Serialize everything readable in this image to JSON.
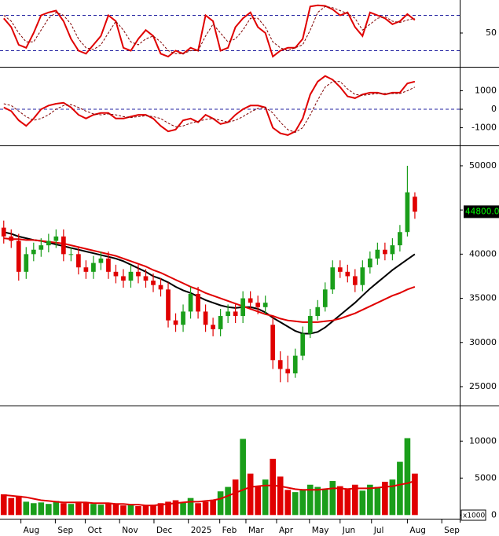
{
  "chart_data": [
    {
      "type": "line",
      "ylim": [
        -7.3,
        106
      ],
      "yticks": [
        50
      ],
      "levels": [
        20,
        80
      ],
      "level_color": "#2020a0",
      "series": [
        {
          "color": "#e00000",
          "line_style": "solid",
          "values": [
            75,
            60,
            30,
            25,
            50,
            80,
            85,
            88,
            70,
            40,
            20,
            15,
            30,
            45,
            80,
            70,
            25,
            20,
            40,
            55,
            45,
            15,
            10,
            20,
            15,
            25,
            20,
            80,
            70,
            20,
            25,
            60,
            75,
            85,
            60,
            50,
            10,
            20,
            25,
            25,
            40,
            95,
            97,
            96,
            90,
            80,
            85,
            60,
            45,
            85,
            80,
            75,
            65,
            70,
            82,
            72
          ]
        },
        {
          "color": "#800000",
          "line_style": "dashed",
          "values": [
            80,
            70,
            50,
            35,
            35,
            55,
            75,
            85,
            80,
            65,
            40,
            25,
            22,
            30,
            50,
            70,
            55,
            35,
            30,
            40,
            45,
            35,
            20,
            15,
            15,
            20,
            20,
            45,
            65,
            50,
            35,
            40,
            55,
            75,
            75,
            60,
            35,
            25,
            20,
            25,
            30,
            55,
            85,
            95,
            93,
            88,
            83,
            75,
            55,
            65,
            75,
            78,
            70,
            68,
            72,
            75
          ]
        }
      ]
    },
    {
      "type": "line",
      "ylim": [
        -1870,
        2170
      ],
      "yticks": [
        1000,
        0,
        -1000
      ],
      "levels": [
        0
      ],
      "level_color": "#2020a0",
      "series": [
        {
          "color": "#e00000",
          "line_style": "solid",
          "values": [
            100,
            -100,
            -600,
            -900,
            -500,
            0,
            200,
            300,
            350,
            100,
            -300,
            -500,
            -300,
            -200,
            -200,
            -500,
            -500,
            -400,
            -300,
            -300,
            -500,
            -900,
            -1200,
            -1100,
            -600,
            -500,
            -700,
            -300,
            -500,
            -800,
            -700,
            -300,
            0,
            200,
            200,
            100,
            -1000,
            -1300,
            -1400,
            -1200,
            -500,
            800,
            1500,
            1800,
            1600,
            1200,
            700,
            600,
            800,
            900,
            900,
            800,
            900,
            900,
            1400,
            1500
          ]
        },
        {
          "color": "#800000",
          "line_style": "dashed",
          "values": [
            300,
            200,
            -100,
            -400,
            -600,
            -500,
            -300,
            0,
            200,
            250,
            100,
            -100,
            -250,
            -300,
            -250,
            -300,
            -400,
            -450,
            -400,
            -350,
            -400,
            -500,
            -750,
            -950,
            -900,
            -750,
            -650,
            -550,
            -500,
            -600,
            -700,
            -600,
            -400,
            -150,
            50,
            100,
            -200,
            -700,
            -1100,
            -1250,
            -1000,
            -300,
            500,
            1200,
            1500,
            1500,
            1100,
            800,
            750,
            800,
            850,
            850,
            850,
            850,
            1000,
            1200
          ]
        }
      ]
    },
    {
      "type": "candlestick",
      "ylim": [
        22950,
        52220
      ],
      "yticks": [
        50000,
        45000,
        40000,
        35000,
        30000,
        25000
      ],
      "up_color": "#1a9e1a",
      "down_color": "#e00000",
      "x": [
        0,
        1,
        2,
        3,
        4,
        5,
        6,
        7,
        8,
        9,
        10,
        11,
        12,
        13,
        14,
        15,
        16,
        17,
        18,
        19,
        20,
        21,
        22,
        23,
        24,
        25,
        26,
        27,
        28,
        29,
        30,
        31,
        32,
        33,
        34,
        35,
        36,
        37,
        38,
        39,
        40,
        41,
        42,
        43,
        44,
        45,
        46,
        47,
        48,
        49,
        50,
        51,
        52,
        53,
        54,
        55
      ],
      "open": [
        43000,
        42000,
        41500,
        38000,
        40000,
        40500,
        41000,
        41500,
        42000,
        40000,
        40000,
        38500,
        38000,
        39000,
        39500,
        38000,
        37500,
        37000,
        38000,
        37500,
        37000,
        36500,
        36000,
        32500,
        32000,
        33500,
        35500,
        33500,
        32000,
        31500,
        33000,
        33500,
        33000,
        35000,
        34500,
        34000,
        32000,
        28000,
        27000,
        26500,
        28500,
        31000,
        33000,
        34000,
        36000,
        38500,
        38000,
        37500,
        36500,
        38500,
        39500,
        40500,
        40000,
        41000,
        42500,
        46500
      ],
      "high": [
        43800,
        42800,
        42300,
        40800,
        41300,
        41800,
        42300,
        42800,
        42800,
        40800,
        40800,
        39300,
        39800,
        40300,
        40300,
        38800,
        38300,
        38800,
        38800,
        38300,
        37800,
        37300,
        36800,
        33300,
        34300,
        36300,
        36300,
        34300,
        32800,
        33800,
        34300,
        34300,
        35800,
        35800,
        35300,
        35300,
        33000,
        29000,
        28500,
        29300,
        31800,
        33800,
        34800,
        36800,
        39300,
        39300,
        38800,
        38300,
        39300,
        40300,
        41300,
        41300,
        41800,
        43300,
        50000,
        47000
      ],
      "low": [
        41200,
        40700,
        37000,
        37200,
        39200,
        39700,
        40200,
        40700,
        39200,
        39200,
        37700,
        37200,
        37200,
        38200,
        37200,
        36700,
        36200,
        36200,
        36700,
        36200,
        35700,
        35200,
        31700,
        31200,
        31200,
        32700,
        32700,
        31200,
        30700,
        30700,
        32200,
        32200,
        32200,
        33700,
        33200,
        33200,
        27000,
        25500,
        25500,
        26000,
        28000,
        30500,
        32500,
        33500,
        35500,
        37300,
        36800,
        35700,
        35800,
        37800,
        38800,
        39300,
        39300,
        40300,
        42000,
        44000
      ],
      "close": [
        42000,
        41500,
        38000,
        40000,
        40500,
        41000,
        41500,
        42000,
        40000,
        40000,
        38500,
        38000,
        39000,
        39500,
        38000,
        37500,
        37000,
        38000,
        37500,
        37000,
        36500,
        36000,
        32500,
        32000,
        33500,
        35500,
        33500,
        32000,
        31500,
        33000,
        33500,
        33000,
        35000,
        34500,
        34000,
        34500,
        28000,
        27000,
        26500,
        28500,
        31000,
        33000,
        34000,
        36000,
        38500,
        38000,
        37500,
        36500,
        38500,
        39500,
        40500,
        40000,
        41000,
        42500,
        47000,
        44800
      ],
      "last_price": {
        "value": 44800,
        "label": "44800.00"
      },
      "series": [
        {
          "color": "#000000",
          "values": [
            42500,
            42300,
            42000,
            41800,
            41600,
            41500,
            41300,
            41100,
            40900,
            40700,
            40500,
            40300,
            40100,
            39900,
            39700,
            39500,
            39200,
            38800,
            38400,
            38000,
            37500,
            37200,
            36800,
            36300,
            35900,
            35600,
            35200,
            34800,
            34500,
            34200,
            34000,
            33900,
            34000,
            34000,
            33800,
            33400,
            32800,
            32300,
            31800,
            31300,
            31000,
            31000,
            31200,
            31700,
            32400,
            33100,
            33800,
            34500,
            35300,
            36100,
            36800,
            37500,
            38200,
            38800,
            39400,
            40000
          ]
        },
        {
          "color": "#e00000",
          "values": [
            41800,
            41700,
            41700,
            41600,
            41600,
            41500,
            41400,
            41300,
            41200,
            41000,
            40800,
            40600,
            40400,
            40200,
            40000,
            39800,
            39500,
            39200,
            38900,
            38600,
            38200,
            37900,
            37500,
            37100,
            36700,
            36300,
            36000,
            35600,
            35300,
            35000,
            34700,
            34400,
            34100,
            33800,
            33500,
            33200,
            33000,
            32700,
            32500,
            32400,
            32300,
            32300,
            32300,
            32400,
            32500,
            32700,
            33000,
            33300,
            33700,
            34100,
            34500,
            34900,
            35300,
            35600,
            36000,
            36300
          ]
        }
      ]
    },
    {
      "type": "bar",
      "ylim": [
        -500,
        14600
      ],
      "yticks": [
        10000,
        5000,
        0
      ],
      "unit_label": "x1000",
      "xlim": [
        -0.5,
        61
      ],
      "xticks": [
        {
          "value": 2.3,
          "label": "Aug"
        },
        {
          "value": 6.9,
          "label": "Sep"
        },
        {
          "value": 10.9,
          "label": "Oct"
        },
        {
          "value": 15.5,
          "label": "Nov"
        },
        {
          "value": 20.1,
          "label": "Dec"
        },
        {
          "value": 24.7,
          "label": "2025"
        },
        {
          "value": 28.9,
          "label": "Feb"
        },
        {
          "value": 32.4,
          "label": "Mar"
        },
        {
          "value": 36.5,
          "label": "Apr"
        },
        {
          "value": 40.9,
          "label": "May"
        },
        {
          "value": 45,
          "label": "Jun"
        },
        {
          "value": 49.2,
          "label": "Jul"
        },
        {
          "value": 54,
          "label": "Aug"
        },
        {
          "value": 58.6,
          "label": "Sep"
        }
      ],
      "values": [
        2800,
        2300,
        2600,
        1800,
        1600,
        1700,
        1500,
        1900,
        1600,
        1500,
        1800,
        1700,
        1500,
        1400,
        1600,
        1500,
        1300,
        1400,
        1200,
        1300,
        1400,
        1600,
        1800,
        2000,
        1700,
        2300,
        1600,
        1800,
        2000,
        3200,
        3800,
        4800,
        10300,
        5600,
        3900,
        4800,
        7600,
        5200,
        3400,
        3100,
        3400,
        4100,
        3800,
        3500,
        4600,
        3900,
        3600,
        4100,
        3300,
        4100,
        3800,
        4500,
        4800,
        7200,
        10400,
        5600
      ],
      "series": [
        {
          "color": "#e00000",
          "values": [
            2700,
            2600,
            2500,
            2400,
            2200,
            2000,
            1900,
            1800,
            1700,
            1700,
            1700,
            1700,
            1600,
            1600,
            1600,
            1500,
            1500,
            1400,
            1400,
            1300,
            1300,
            1400,
            1500,
            1600,
            1700,
            1800,
            1800,
            1900,
            2000,
            2200,
            2600,
            3000,
            3400,
            3800,
            3900,
            4000,
            4000,
            3900,
            3700,
            3500,
            3400,
            3400,
            3400,
            3500,
            3600,
            3600,
            3500,
            3600,
            3600,
            3600,
            3700,
            3800,
            3900,
            4100,
            4300,
            4600
          ]
        }
      ]
    }
  ]
}
